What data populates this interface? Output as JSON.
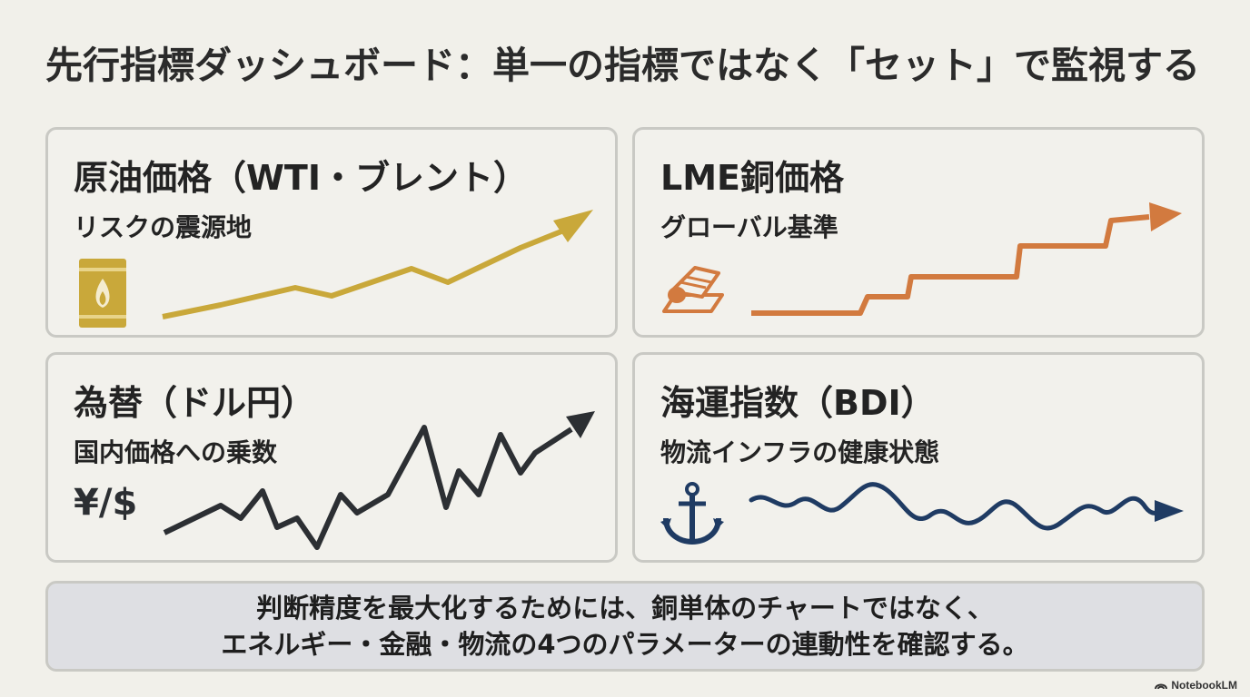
{
  "title": "先行指標ダッシュボード：単一の指標ではなく「セット」で監視する",
  "cards": [
    {
      "title": "原油価格（WTI・ブレント）",
      "subtitle": "リスクの震源地",
      "icon": "oil-barrel-icon",
      "color": "#c9a83a"
    },
    {
      "title": "LME銅価格",
      "subtitle": "グローバル基準",
      "icon": "copper-ingot-icon",
      "color": "#d27a3f"
    },
    {
      "title": "為替（ドル円）",
      "subtitle": "国内価格への乗数",
      "icon": "currency-icon",
      "icon_text": "¥/$",
      "color": "#2c2f33"
    },
    {
      "title": "海運指数（BDI）",
      "subtitle": "物流インフラの健康状態",
      "icon": "anchor-icon",
      "color": "#1f3b63"
    }
  ],
  "banner": {
    "line1": "判断精度を最大化するためには、銅単体のチャートではなく、",
    "line2": "エネルギー・金融・物流の4つのパラメーターの連動性を確認する。"
  },
  "logo": {
    "text": "NotebookLM"
  }
}
